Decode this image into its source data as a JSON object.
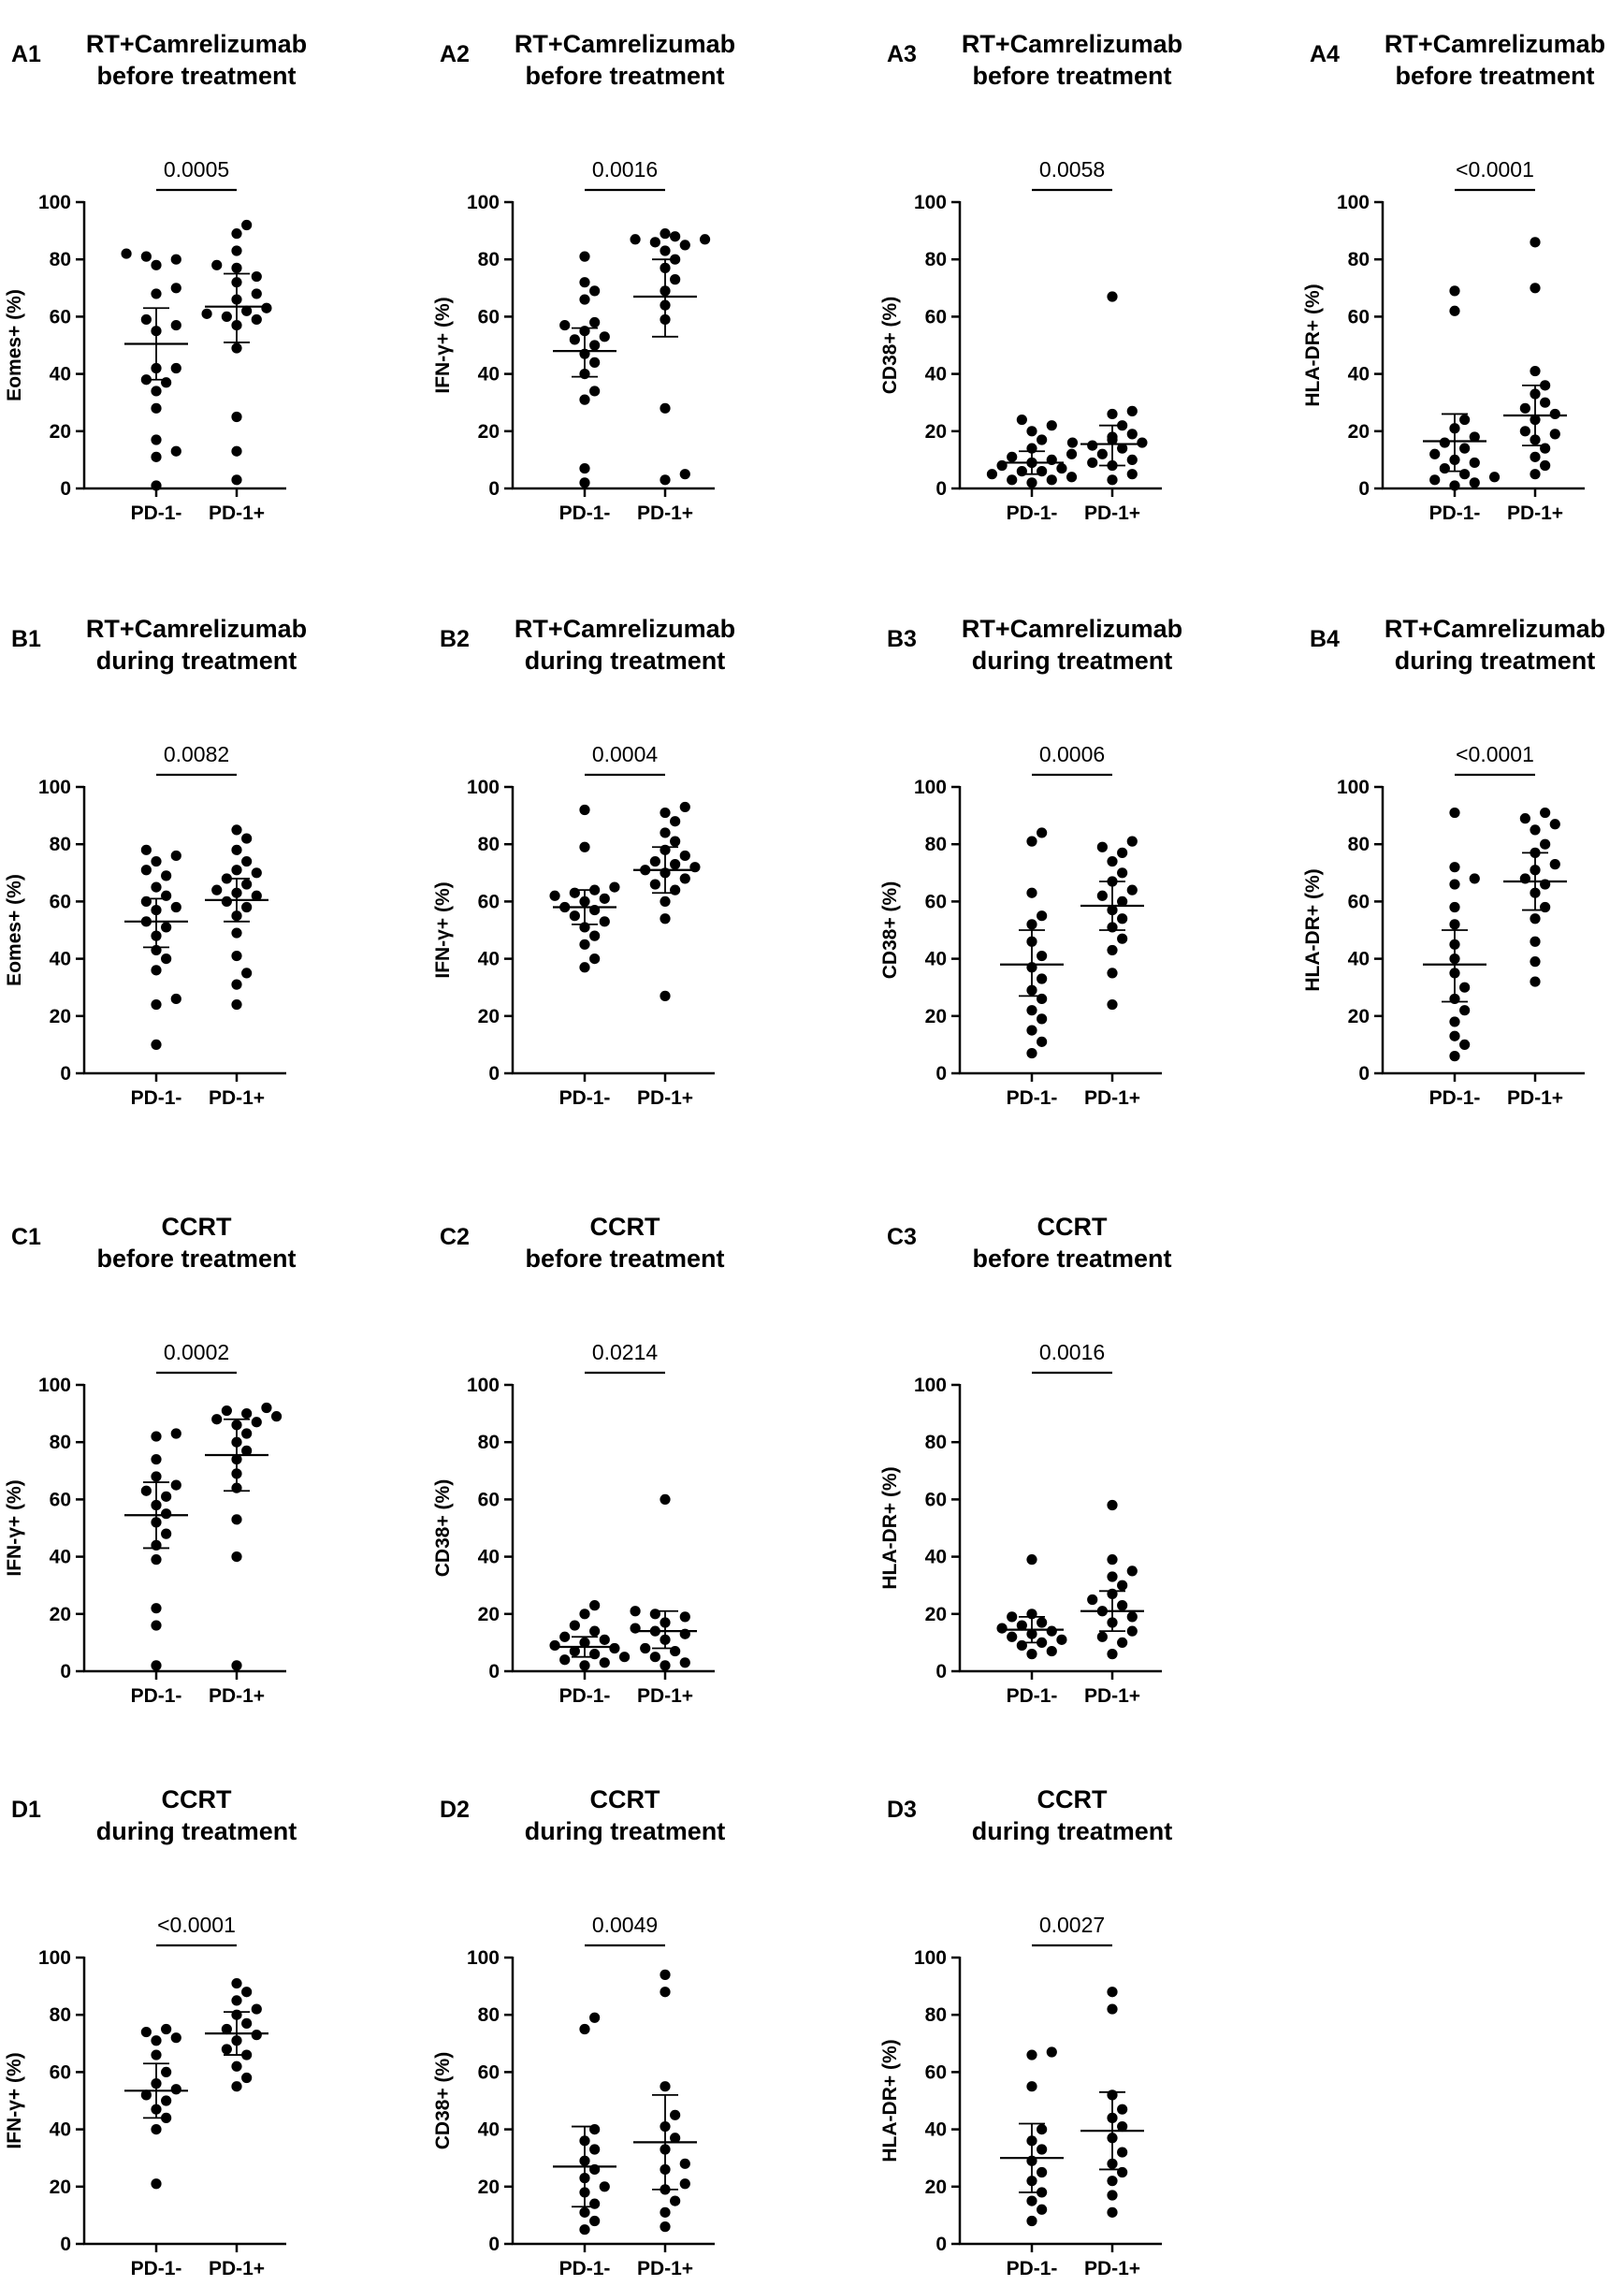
{
  "chart_data": [
    {
      "id": "A1",
      "type": "scatter",
      "title": [
        "RT+Camrelizumab",
        "before treatment"
      ],
      "ylabel": "Eomes+ (%)",
      "categories": [
        "PD-1-",
        "PD-1+"
      ],
      "ylim": [
        0,
        100
      ],
      "yticks": [
        0,
        20,
        40,
        60,
        80,
        100
      ],
      "pvalue": "0.0005",
      "groups": [
        {
          "name": "PD-1-",
          "mean": 50.5,
          "err": [
            38,
            63
          ],
          "values": [
            1,
            11,
            13,
            17,
            28,
            34,
            37,
            38,
            42,
            42,
            55,
            57,
            59,
            68,
            70,
            78,
            80,
            81,
            82
          ]
        },
        {
          "name": "PD-1+",
          "mean": 63.5,
          "err": [
            51,
            75
          ],
          "values": [
            3,
            13,
            25,
            49,
            57,
            59,
            60,
            61,
            62,
            63,
            66,
            68,
            72,
            74,
            77,
            78,
            83,
            89,
            92
          ]
        }
      ]
    },
    {
      "id": "A2",
      "type": "scatter",
      "title": [
        "RT+Camrelizumab",
        "before treatment"
      ],
      "ylabel": "IFN-γ+ (%)",
      "categories": [
        "PD-1-",
        "PD-1+"
      ],
      "ylim": [
        0,
        100
      ],
      "yticks": [
        0,
        20,
        40,
        60,
        80,
        100
      ],
      "pvalue": "0.0016",
      "groups": [
        {
          "name": "PD-1-",
          "mean": 48,
          "err": [
            39,
            56
          ],
          "values": [
            2,
            7,
            31,
            34,
            40,
            44,
            47,
            50,
            52,
            53,
            55,
            57,
            58,
            66,
            69,
            72,
            81
          ]
        },
        {
          "name": "PD-1+",
          "mean": 67,
          "err": [
            53,
            80
          ],
          "values": [
            3,
            5,
            28,
            59,
            64,
            69,
            73,
            77,
            80,
            83,
            85,
            86,
            87,
            87,
            88,
            89
          ]
        }
      ]
    },
    {
      "id": "A3",
      "type": "scatter",
      "title": [
        "RT+Camrelizumab",
        "before treatment"
      ],
      "ylabel": "CD38+ (%)",
      "categories": [
        "PD-1-",
        "PD-1+"
      ],
      "ylim": [
        0,
        100
      ],
      "yticks": [
        0,
        20,
        40,
        60,
        80,
        100
      ],
      "pvalue": "0.0058",
      "groups": [
        {
          "name": "PD-1-",
          "mean": 9,
          "err": [
            5,
            13
          ],
          "values": [
            2,
            3,
            3,
            4,
            5,
            6,
            6,
            7,
            8,
            9,
            9,
            10,
            11,
            12,
            14,
            17,
            20,
            22,
            24
          ]
        },
        {
          "name": "PD-1+",
          "mean": 15.5,
          "err": [
            8,
            22
          ],
          "values": [
            3,
            5,
            8,
            9,
            10,
            12,
            14,
            15,
            16,
            16,
            17,
            18,
            19,
            22,
            26,
            27,
            67
          ]
        }
      ]
    },
    {
      "id": "A4",
      "type": "scatter",
      "title": [
        "RT+Camrelizumab",
        "before treatment"
      ],
      "ylabel": "HLA-DR+ (%)",
      "categories": [
        "PD-1-",
        "PD-1+"
      ],
      "ylim": [
        0,
        100
      ],
      "yticks": [
        0,
        20,
        40,
        60,
        80,
        100
      ],
      "pvalue": "<0.0001",
      "groups": [
        {
          "name": "PD-1-",
          "mean": 16.5,
          "err": [
            6,
            26
          ],
          "values": [
            1,
            2,
            3,
            4,
            5,
            7,
            9,
            10,
            12,
            14,
            16,
            18,
            21,
            24,
            62,
            69
          ]
        },
        {
          "name": "PD-1+",
          "mean": 25.5,
          "err": [
            15,
            36
          ],
          "values": [
            5,
            8,
            11,
            14,
            17,
            19,
            20,
            24,
            26,
            28,
            30,
            33,
            36,
            41,
            70,
            86
          ]
        }
      ]
    },
    {
      "id": "B1",
      "type": "scatter",
      "title": [
        "RT+Camrelizumab",
        "during treatment"
      ],
      "ylabel": "Eomes+ (%)",
      "categories": [
        "PD-1-",
        "PD-1+"
      ],
      "ylim": [
        0,
        100
      ],
      "yticks": [
        0,
        20,
        40,
        60,
        80,
        100
      ],
      "pvalue": "0.0082",
      "groups": [
        {
          "name": "PD-1-",
          "mean": 53,
          "err": [
            44,
            61
          ],
          "values": [
            10,
            24,
            26,
            36,
            40,
            43,
            48,
            51,
            53,
            57,
            58,
            60,
            62,
            65,
            69,
            71,
            74,
            76,
            78
          ]
        },
        {
          "name": "PD-1+",
          "mean": 60.5,
          "err": [
            53,
            68
          ],
          "values": [
            24,
            31,
            35,
            41,
            49,
            55,
            58,
            60,
            62,
            63,
            64,
            66,
            68,
            70,
            71,
            74,
            78,
            82,
            85
          ]
        }
      ]
    },
    {
      "id": "B2",
      "type": "scatter",
      "title": [
        "RT+Camrelizumab",
        "during treatment"
      ],
      "ylabel": "IFN-γ+ (%)",
      "categories": [
        "PD-1-",
        "PD-1+"
      ],
      "ylim": [
        0,
        100
      ],
      "yticks": [
        0,
        20,
        40,
        60,
        80,
        100
      ],
      "pvalue": "0.0004",
      "groups": [
        {
          "name": "PD-1-",
          "mean": 58,
          "err": [
            52,
            64
          ],
          "values": [
            37,
            40,
            45,
            48,
            51,
            53,
            55,
            57,
            58,
            60,
            61,
            62,
            63,
            64,
            65,
            79,
            92
          ]
        },
        {
          "name": "PD-1+",
          "mean": 71,
          "err": [
            63,
            79
          ],
          "values": [
            27,
            54,
            60,
            64,
            66,
            68,
            70,
            71,
            72,
            73,
            74,
            76,
            78,
            81,
            84,
            88,
            91,
            93
          ]
        }
      ]
    },
    {
      "id": "B3",
      "type": "scatter",
      "title": [
        "RT+Camrelizumab",
        "during treatment"
      ],
      "ylabel": "CD38+ (%)",
      "categories": [
        "PD-1-",
        "PD-1+"
      ],
      "ylim": [
        0,
        100
      ],
      "yticks": [
        0,
        20,
        40,
        60,
        80,
        100
      ],
      "pvalue": "0.0006",
      "groups": [
        {
          "name": "PD-1-",
          "mean": 38,
          "err": [
            27,
            50
          ],
          "values": [
            7,
            11,
            15,
            19,
            22,
            26,
            29,
            33,
            37,
            41,
            46,
            52,
            55,
            63,
            81,
            84
          ]
        },
        {
          "name": "PD-1+",
          "mean": 58.5,
          "err": [
            50,
            67
          ],
          "values": [
            24,
            35,
            43,
            47,
            51,
            54,
            57,
            60,
            62,
            64,
            67,
            70,
            74,
            77,
            79,
            81
          ]
        }
      ]
    },
    {
      "id": "B4",
      "type": "scatter",
      "title": [
        "RT+Camrelizumab",
        "during treatment"
      ],
      "ylabel": "HLA-DR+ (%)",
      "categories": [
        "PD-1-",
        "PD-1+"
      ],
      "ylim": [
        0,
        100
      ],
      "yticks": [
        0,
        20,
        40,
        60,
        80,
        100
      ],
      "pvalue": "<0.0001",
      "groups": [
        {
          "name": "PD-1-",
          "mean": 38,
          "err": [
            25,
            50
          ],
          "values": [
            6,
            10,
            13,
            18,
            22,
            26,
            30,
            35,
            40,
            45,
            52,
            58,
            66,
            68,
            72,
            91
          ]
        },
        {
          "name": "PD-1+",
          "mean": 67,
          "err": [
            57,
            77
          ],
          "values": [
            32,
            39,
            46,
            54,
            58,
            63,
            66,
            68,
            71,
            73,
            77,
            80,
            85,
            87,
            89,
            91
          ]
        }
      ]
    },
    {
      "id": "C1",
      "type": "scatter",
      "title": [
        "CCRT",
        "before treatment"
      ],
      "ylabel": "IFN-γ+ (%)",
      "categories": [
        "PD-1-",
        "PD-1+"
      ],
      "ylim": [
        0,
        100
      ],
      "yticks": [
        0,
        20,
        40,
        60,
        80,
        100
      ],
      "pvalue": "0.0002",
      "groups": [
        {
          "name": "PD-1-",
          "mean": 54.5,
          "err": [
            43,
            66
          ],
          "values": [
            2,
            16,
            22,
            39,
            44,
            48,
            52,
            55,
            58,
            61,
            63,
            65,
            68,
            74,
            82,
            83
          ]
        },
        {
          "name": "PD-1+",
          "mean": 75.5,
          "err": [
            63,
            88
          ],
          "values": [
            2,
            40,
            53,
            64,
            69,
            74,
            77,
            80,
            83,
            86,
            87,
            88,
            89,
            90,
            91,
            92
          ]
        }
      ]
    },
    {
      "id": "C2",
      "type": "scatter",
      "title": [
        "CCRT",
        "before treatment"
      ],
      "ylabel": "CD38+ (%)",
      "categories": [
        "PD-1-",
        "PD-1+"
      ],
      "ylim": [
        0,
        100
      ],
      "yticks": [
        0,
        20,
        40,
        60,
        80,
        100
      ],
      "pvalue": "0.0214",
      "groups": [
        {
          "name": "PD-1-",
          "mean": 8.5,
          "err": [
            5,
            12
          ],
          "values": [
            2,
            3,
            4,
            5,
            6,
            7,
            8,
            9,
            10,
            11,
            12,
            14,
            16,
            20,
            23
          ]
        },
        {
          "name": "PD-1+",
          "mean": 14,
          "err": [
            8,
            21
          ],
          "values": [
            2,
            3,
            5,
            7,
            8,
            11,
            13,
            14,
            15,
            17,
            19,
            20,
            21,
            60
          ]
        }
      ]
    },
    {
      "id": "C3",
      "type": "scatter",
      "title": [
        "CCRT",
        "before treatment"
      ],
      "ylabel": "HLA-DR+ (%)",
      "categories": [
        "PD-1-",
        "PD-1+"
      ],
      "ylim": [
        0,
        100
      ],
      "yticks": [
        0,
        20,
        40,
        60,
        80,
        100
      ],
      "pvalue": "0.0016",
      "groups": [
        {
          "name": "PD-1-",
          "mean": 14.5,
          "err": [
            10,
            19
          ],
          "values": [
            6,
            7,
            9,
            10,
            11,
            12,
            13,
            14,
            15,
            16,
            17,
            19,
            20,
            39
          ]
        },
        {
          "name": "PD-1+",
          "mean": 21,
          "err": [
            14,
            28
          ],
          "values": [
            6,
            10,
            12,
            14,
            17,
            19,
            21,
            23,
            25,
            27,
            30,
            33,
            35,
            39,
            58
          ]
        }
      ]
    },
    {
      "id": "D1",
      "type": "scatter",
      "title": [
        "CCRT",
        "during treatment"
      ],
      "ylabel": "IFN-γ+ (%)",
      "categories": [
        "PD-1-",
        "PD-1+"
      ],
      "ylim": [
        0,
        100
      ],
      "yticks": [
        0,
        20,
        40,
        60,
        80,
        100
      ],
      "pvalue": "<0.0001",
      "groups": [
        {
          "name": "PD-1-",
          "mean": 53.5,
          "err": [
            44,
            63
          ],
          "values": [
            21,
            40,
            44,
            47,
            50,
            52,
            54,
            56,
            60,
            66,
            71,
            72,
            74,
            75
          ]
        },
        {
          "name": "PD-1+",
          "mean": 73.5,
          "err": [
            66,
            81
          ],
          "values": [
            55,
            58,
            62,
            66,
            68,
            71,
            73,
            75,
            77,
            80,
            82,
            85,
            88,
            91
          ]
        }
      ]
    },
    {
      "id": "D2",
      "type": "scatter",
      "title": [
        "CCRT",
        "during treatment"
      ],
      "ylabel": "CD38+ (%)",
      "categories": [
        "PD-1-",
        "PD-1+"
      ],
      "ylim": [
        0,
        100
      ],
      "yticks": [
        0,
        20,
        40,
        60,
        80,
        100
      ],
      "pvalue": "0.0049",
      "groups": [
        {
          "name": "PD-1-",
          "mean": 27,
          "err": [
            13,
            41
          ],
          "values": [
            5,
            8,
            11,
            14,
            18,
            20,
            23,
            26,
            29,
            33,
            36,
            40,
            75,
            79
          ]
        },
        {
          "name": "PD-1+",
          "mean": 35.5,
          "err": [
            19,
            52
          ],
          "values": [
            6,
            11,
            15,
            19,
            21,
            26,
            28,
            33,
            37,
            41,
            45,
            55,
            88,
            94
          ]
        }
      ]
    },
    {
      "id": "D3",
      "type": "scatter",
      "title": [
        "CCRT",
        "during treatment"
      ],
      "ylabel": "HLA-DR+ (%)",
      "categories": [
        "PD-1-",
        "PD-1+"
      ],
      "ylim": [
        0,
        100
      ],
      "yticks": [
        0,
        20,
        40,
        60,
        80,
        100
      ],
      "pvalue": "0.0027",
      "groups": [
        {
          "name": "PD-1-",
          "mean": 30,
          "err": [
            18,
            42
          ],
          "values": [
            8,
            12,
            15,
            18,
            22,
            25,
            29,
            33,
            36,
            40,
            55,
            66,
            67
          ]
        },
        {
          "name": "PD-1+",
          "mean": 39.5,
          "err": [
            26,
            53
          ],
          "values": [
            11,
            17,
            22,
            25,
            28,
            32,
            37,
            41,
            44,
            47,
            52,
            82,
            88
          ]
        }
      ]
    }
  ]
}
